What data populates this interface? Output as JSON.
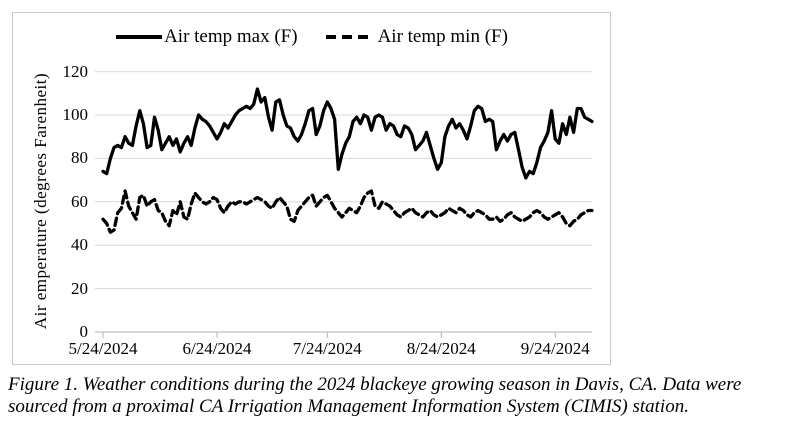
{
  "figure": {
    "caption_line1": "Figure 1. Weather conditions during the 2024 blackeye growing season in Davis, CA. Data were",
    "caption_line2": "sourced from a proximal CA Irrigation Management Information System (CIMIS) station."
  },
  "colors": {
    "line": "#000000",
    "grid": "#d9d9d9",
    "axis": "#bfbfbf",
    "frame": "#c9c9c9"
  },
  "chart_data": {
    "type": "line",
    "title": "",
    "xlabel": "",
    "ylabel": "Air emperature (degrees Farenheit)",
    "ylim": [
      0,
      120
    ],
    "yticks": [
      0,
      20,
      40,
      60,
      80,
      100,
      120
    ],
    "xticks": [
      "5/24/2024",
      "6/24/2024",
      "7/24/2024",
      "8/24/2024",
      "9/24/2024"
    ],
    "xtick_indices": [
      0,
      31,
      61,
      92,
      123
    ],
    "x_start_date": "5/24/2024",
    "x_end_date": "10/4/2024",
    "frequency": "daily",
    "grid": "horizontal",
    "legend_position": "top",
    "series": [
      {
        "name": "Air temp max (F)",
        "style": "solid",
        "color": "#000000",
        "values": [
          74,
          73,
          80,
          85,
          86,
          85,
          90,
          87,
          86,
          95,
          102,
          96,
          85,
          86,
          99,
          93,
          84,
          87,
          90,
          86,
          89,
          83,
          87,
          90,
          86,
          94,
          100,
          98,
          97,
          95,
          92,
          89,
          92,
          96,
          94,
          97,
          100,
          102,
          103,
          104,
          103,
          105,
          112,
          106,
          108,
          99,
          93,
          106,
          107,
          100,
          95,
          94,
          90,
          88,
          91,
          96,
          102,
          103,
          91,
          95,
          102,
          106,
          103,
          98,
          75,
          82,
          87,
          90,
          97,
          99,
          96,
          100,
          99,
          93,
          99,
          100,
          99,
          93,
          96,
          95,
          91,
          90,
          95,
          94,
          91,
          84,
          86,
          88,
          92,
          86,
          80,
          75,
          78,
          90,
          95,
          98,
          94,
          96,
          93,
          89,
          95,
          102,
          104,
          103,
          97,
          98,
          97,
          84,
          88,
          91,
          88,
          91,
          92,
          84,
          76,
          71,
          74,
          73,
          78,
          85,
          88,
          92,
          102,
          89,
          87,
          96,
          91,
          99,
          92,
          103,
          103,
          99,
          98,
          97
        ]
      },
      {
        "name": "Air temp min (F)",
        "style": "dashed",
        "color": "#000000",
        "values": [
          52,
          50,
          46,
          47,
          55,
          57,
          65,
          58,
          55,
          52,
          62,
          63,
          58,
          60,
          61,
          56,
          55,
          51,
          49,
          56,
          54,
          60,
          53,
          52,
          59,
          64,
          62,
          60,
          59,
          60,
          62,
          61,
          57,
          55,
          58,
          60,
          59,
          60,
          60,
          59,
          60,
          61,
          62,
          61,
          60,
          58,
          57,
          60,
          62,
          60,
          58,
          52,
          51,
          56,
          58,
          60,
          62,
          63,
          58,
          60,
          62,
          63,
          60,
          57,
          55,
          53,
          55,
          57,
          56,
          55,
          58,
          62,
          64,
          65,
          58,
          57,
          60,
          59,
          58,
          56,
          54,
          53,
          55,
          56,
          57,
          55,
          54,
          53,
          55,
          56,
          54,
          53,
          54,
          55,
          57,
          56,
          55,
          57,
          56,
          54,
          53,
          55,
          56,
          55,
          54,
          52,
          52,
          53,
          51,
          52,
          54,
          55,
          53,
          52,
          51,
          52,
          53,
          55,
          56,
          55,
          53,
          52,
          53,
          54,
          55,
          53,
          50,
          49,
          51,
          52,
          54,
          55,
          56,
          56
        ]
      }
    ]
  }
}
